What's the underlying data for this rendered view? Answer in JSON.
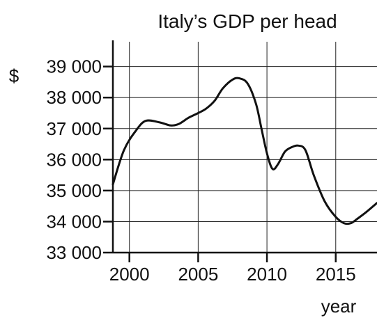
{
  "chart_data": {
    "type": "line",
    "title": "Italy’s GDP per head",
    "xlabel": "year",
    "ylabel": "$",
    "xlim": [
      1998.8,
      2018
    ],
    "ylim": [
      33000,
      39800
    ],
    "x_ticks": [
      2000,
      2005,
      2010,
      2015
    ],
    "y_ticks": [
      33000,
      34000,
      35000,
      36000,
      37000,
      38000,
      39000
    ],
    "x_tick_labels": [
      "2000",
      "2005",
      "2010",
      "2015"
    ],
    "y_tick_labels": [
      "33 000",
      "34 000",
      "35 000",
      "36 000",
      "37 000",
      "38 000",
      "39 000"
    ],
    "grid": true,
    "series": [
      {
        "x": [
          1998.8,
          1999.6,
          2000.5,
          2001.2,
          2002.2,
          2003.0,
          2003.6,
          2004.3,
          2005.0,
          2005.6,
          2006.2,
          2006.8,
          2007.5,
          2008.0,
          2008.6,
          2009.2,
          2009.6,
          2010.0,
          2010.4,
          2010.8,
          2011.3,
          2011.8,
          2012.3,
          2012.8,
          2013.4,
          2014.2,
          2015.0,
          2015.6,
          2016.1,
          2016.6,
          2017.2,
          2018.0
        ],
        "y": [
          35200,
          36300,
          36950,
          37250,
          37200,
          37100,
          37150,
          37350,
          37500,
          37650,
          37900,
          38300,
          38580,
          38620,
          38450,
          37800,
          37000,
          36200,
          35700,
          35850,
          36250,
          36400,
          36450,
          36300,
          35500,
          34650,
          34150,
          33950,
          33950,
          34100,
          34300,
          34600
        ]
      }
    ]
  }
}
